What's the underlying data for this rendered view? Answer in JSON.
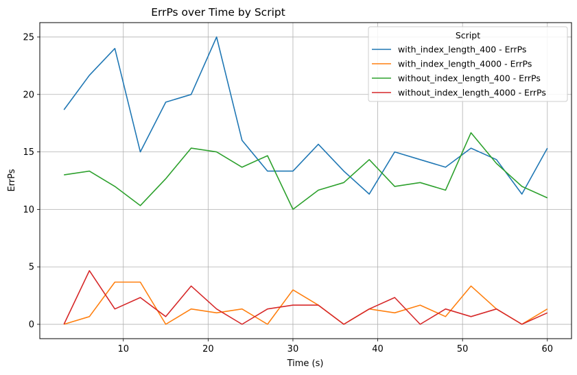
{
  "chart_data": {
    "type": "line",
    "title": "ErrPs over Time by Script",
    "xlabel": "Time (s)",
    "ylabel": "ErrPs",
    "xlim": [
      0.15,
      62.85
    ],
    "ylim": [
      -1.25,
      26.25
    ],
    "xticks": [
      10,
      20,
      30,
      40,
      50,
      60
    ],
    "yticks": [
      0,
      5,
      10,
      15,
      20,
      25
    ],
    "grid": true,
    "legend": {
      "title": "Script",
      "placement": "top-right"
    },
    "x": [
      3,
      6,
      9,
      12,
      15,
      18,
      21,
      24,
      27,
      30,
      33,
      36,
      39,
      42,
      45,
      48,
      51,
      54,
      57,
      60
    ],
    "series": [
      {
        "name": "with_index_length_400 - ErrPs",
        "color": "#1f77b4",
        "values": [
          18.67,
          21.67,
          24.0,
          15.0,
          19.33,
          20.0,
          25.0,
          16.0,
          13.33,
          13.33,
          15.67,
          13.33,
          11.33,
          15.0,
          14.33,
          13.67,
          15.33,
          14.33,
          11.33,
          15.33
        ]
      },
      {
        "name": "with_index_length_4000 - ErrPs",
        "color": "#ff7f0e",
        "values": [
          0.0,
          0.67,
          3.67,
          3.67,
          0.0,
          1.33,
          1.0,
          1.33,
          0.0,
          3.0,
          1.67,
          0.0,
          1.33,
          1.0,
          1.67,
          0.67,
          3.33,
          1.33,
          0.0,
          1.33
        ]
      },
      {
        "name": "without_index_length_400 - ErrPs",
        "color": "#2ca02c",
        "values": [
          13.0,
          13.33,
          12.0,
          10.33,
          12.67,
          15.33,
          15.0,
          13.67,
          14.67,
          10.0,
          11.67,
          12.33,
          14.33,
          12.0,
          12.33,
          11.67,
          16.67,
          14.0,
          12.0,
          11.0
        ]
      },
      {
        "name": "without_index_length_4000 - ErrPs",
        "color": "#d62728",
        "values": [
          0.0,
          4.67,
          1.33,
          2.33,
          0.67,
          3.33,
          1.33,
          0.0,
          1.33,
          1.67,
          1.67,
          0.0,
          1.33,
          2.33,
          0.0,
          1.33,
          0.67,
          1.33,
          0.0,
          1.0
        ]
      }
    ]
  }
}
